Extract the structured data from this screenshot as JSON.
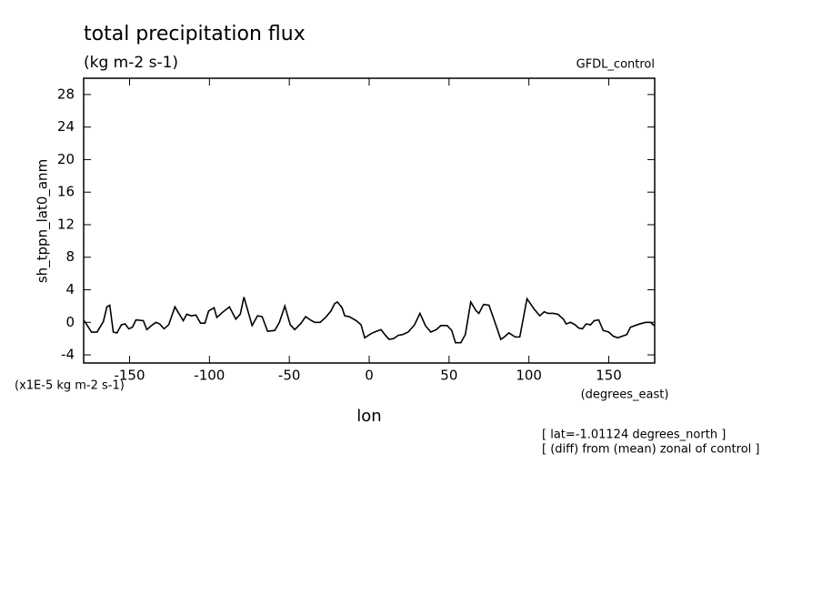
{
  "chart_data": {
    "type": "line",
    "title": "total precipitation flux",
    "subtitle": "(kg m-2 s-1)",
    "dataset": "GFDL_control",
    "y_label": "sh_tppn_lat0_anm",
    "x_label": "lon",
    "x_units": "(degrees_east)",
    "y_units": "(x1E-5 kg m-2 s-1)",
    "annotations": [
      "[ lat=-1.01124 degrees_north ]",
      "[ (diff) from (mean) zonal of control ]"
    ],
    "color": "#000000",
    "xlim": [
      -178.75,
      178.75
    ],
    "xticks": [
      -150,
      -100,
      -50,
      0,
      50,
      100,
      150
    ],
    "ylim": [
      -5,
      30
    ],
    "yticks": [
      -4,
      0,
      4,
      8,
      12,
      16,
      20,
      24,
      28
    ],
    "x": [
      -178.4,
      -173.8,
      -170.4,
      -166.4,
      -164.2,
      -162.4,
      -160.2,
      -157.9,
      -155.1,
      -152.8,
      -150.5,
      -148.2,
      -146.0,
      -141.4,
      -139.2,
      -136.3,
      -133.5,
      -131.2,
      -128.4,
      -125.5,
      -121.6,
      -116.4,
      -114.2,
      -111.3,
      -108.5,
      -105.6,
      -102.8,
      -100.5,
      -97.1,
      -95.4,
      -92.0,
      -87.5,
      -83.5,
      -80.7,
      -78.4,
      -73.3,
      -69.9,
      -67.0,
      -63.6,
      -59.1,
      -56.2,
      -52.8,
      -49.4,
      -46.6,
      -42.6,
      -39.8,
      -36.9,
      -34.1,
      -30.7,
      -27.3,
      -23.9,
      -21.6,
      -19.9,
      -17.0,
      -15.3,
      -12.5,
      -8.0,
      -5.1,
      -2.8,
      1.1,
      4.5,
      7.4,
      10.2,
      12.5,
      15.3,
      18.2,
      21.0,
      24.4,
      28.4,
      31.8,
      35.2,
      38.6,
      42.0,
      44.9,
      48.8,
      51.7,
      54.0,
      57.4,
      60.2,
      63.6,
      67.0,
      68.7,
      71.6,
      75.0,
      78.4,
      82.4,
      84.6,
      87.5,
      91.4,
      94.3,
      98.8,
      103.4,
      106.8,
      109.6,
      111.9,
      115.3,
      118.1,
      121.6,
      123.3,
      126.1,
      128.9,
      131.2,
      133.5,
      135.8,
      138.6,
      140.9,
      143.7,
      146.5,
      150.0,
      152.8,
      155.6,
      158.5,
      161.3,
      163.6,
      169.3,
      173.2,
      176.1,
      178.4
    ],
    "values": [
      0.2,
      -1.2,
      -1.2,
      0.1,
      1.9,
      2.1,
      -1.2,
      -1.3,
      -0.3,
      -0.2,
      -0.8,
      -0.6,
      0.3,
      0.2,
      -0.9,
      -0.4,
      0,
      -0.2,
      -0.8,
      -0.3,
      1.9,
      0.2,
      1.0,
      0.8,
      0.9,
      -0.1,
      -0.1,
      1.4,
      1.8,
      0.6,
      1.2,
      1.9,
      0.4,
      1.0,
      3.1,
      -0.4,
      0.8,
      0.7,
      -1.1,
      -1.0,
      0,
      2.0,
      -0.3,
      -0.9,
      -0.1,
      0.7,
      0.3,
      0,
      0,
      0.6,
      1.4,
      2.3,
      2.5,
      1.8,
      0.8,
      0.7,
      0.2,
      -0.3,
      -1.9,
      -1.4,
      -1.1,
      -0.9,
      -1.6,
      -2.1,
      -2.0,
      -1.6,
      -1.5,
      -1.2,
      -0.3,
      1.1,
      -0.4,
      -1.2,
      -0.9,
      -0.4,
      -0.4,
      -1.0,
      -2.5,
      -2.5,
      -1.5,
      2.5,
      1.4,
      1.1,
      2.2,
      2.1,
      0.2,
      -2.1,
      -1.8,
      -1.3,
      -1.8,
      -1.8,
      2.9,
      1.6,
      0.8,
      1.3,
      1.1,
      1.1,
      1.0,
      0.4,
      -0.2,
      0,
      -0.3,
      -0.7,
      -0.8,
      -0.2,
      -0.3,
      0.2,
      0.3,
      -1.0,
      -1.2,
      -1.7,
      -1.9,
      -1.7,
      -1.5,
      -0.6,
      -0.2,
      0,
      0,
      -0.4
    ]
  }
}
